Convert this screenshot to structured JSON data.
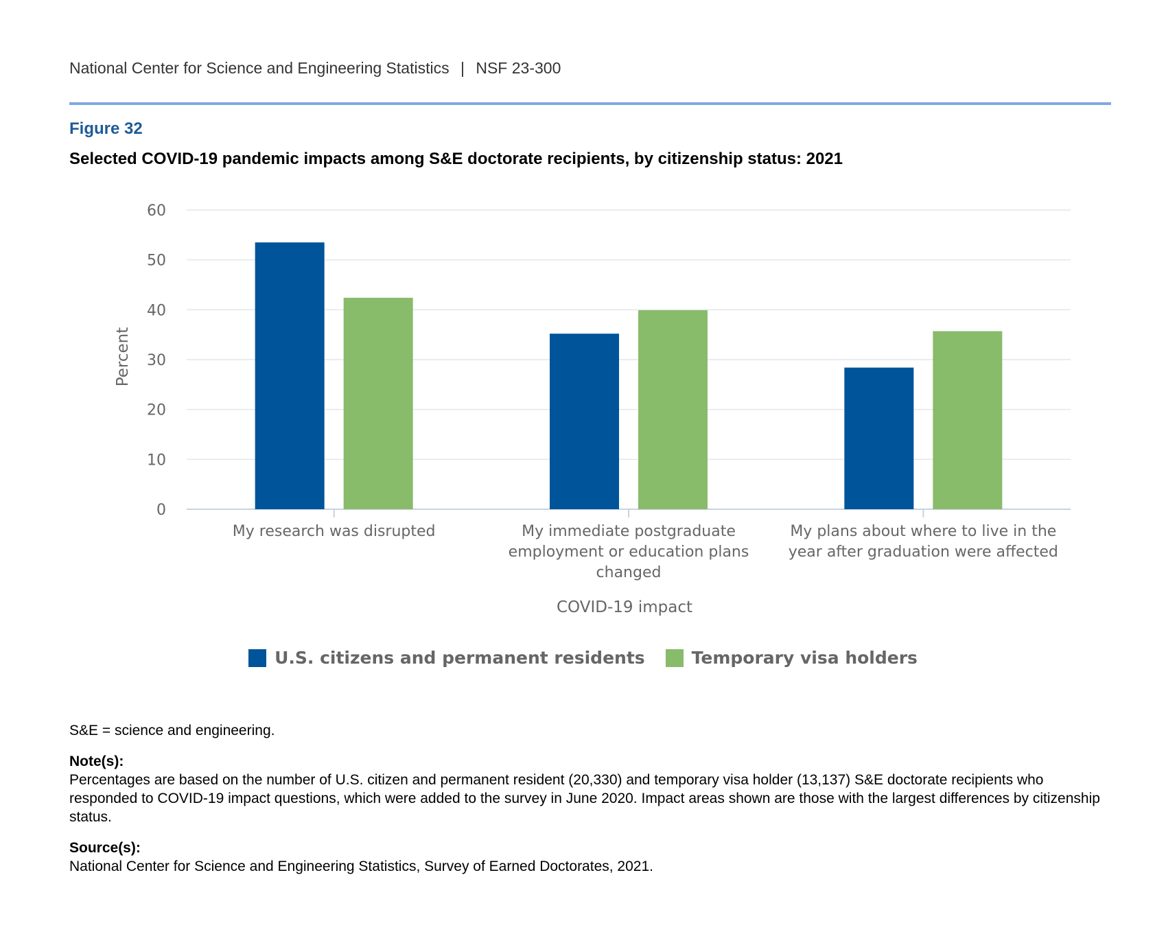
{
  "header": {
    "org": "National Center for Science and Engineering Statistics",
    "separator": "|",
    "report_id": "NSF 23-300"
  },
  "figure": {
    "label": "Figure 32",
    "title": "Selected COVID-19 pandemic impacts among S&E doctorate recipients, by citizenship status: 2021"
  },
  "chart_data": {
    "type": "bar",
    "title": "Selected COVID-19 pandemic impacts among S&E doctorate recipients, by citizenship status: 2021",
    "xlabel": "COVID-19 impact",
    "ylabel": "Percent",
    "ylim": [
      0,
      60
    ],
    "yticks": [
      0,
      10,
      20,
      30,
      40,
      50,
      60
    ],
    "grid": true,
    "legend_position": "bottom",
    "categories": [
      [
        "My research was disrupted"
      ],
      [
        "My immediate postgraduate",
        "employment or education plans",
        "changed"
      ],
      [
        "My plans about where to live in the",
        "year after graduation were affected"
      ]
    ],
    "series": [
      {
        "name": "U.S. citizens and permanent residents",
        "color": "#00549a",
        "values": [
          53.5,
          35.2,
          28.4
        ]
      },
      {
        "name": "Temporary visa holders",
        "color": "#88bb6a",
        "values": [
          42.4,
          39.9,
          35.7
        ]
      }
    ]
  },
  "footnotes": {
    "abbrev": "S&E = science and engineering.",
    "note_heading": "Note(s):",
    "note_text": "Percentages are based on the number of U.S. citizen and permanent resident (20,330) and temporary visa holder (13,137) S&E doctorate recipients who responded to COVID-19 impact questions, which were added to the survey in June 2020. Impact areas shown are those with the largest differences by citizenship status.",
    "source_heading": "Source(s):",
    "source_text": "National Center for Science and Engineering Statistics, Survey of Earned Doctorates, 2021."
  }
}
